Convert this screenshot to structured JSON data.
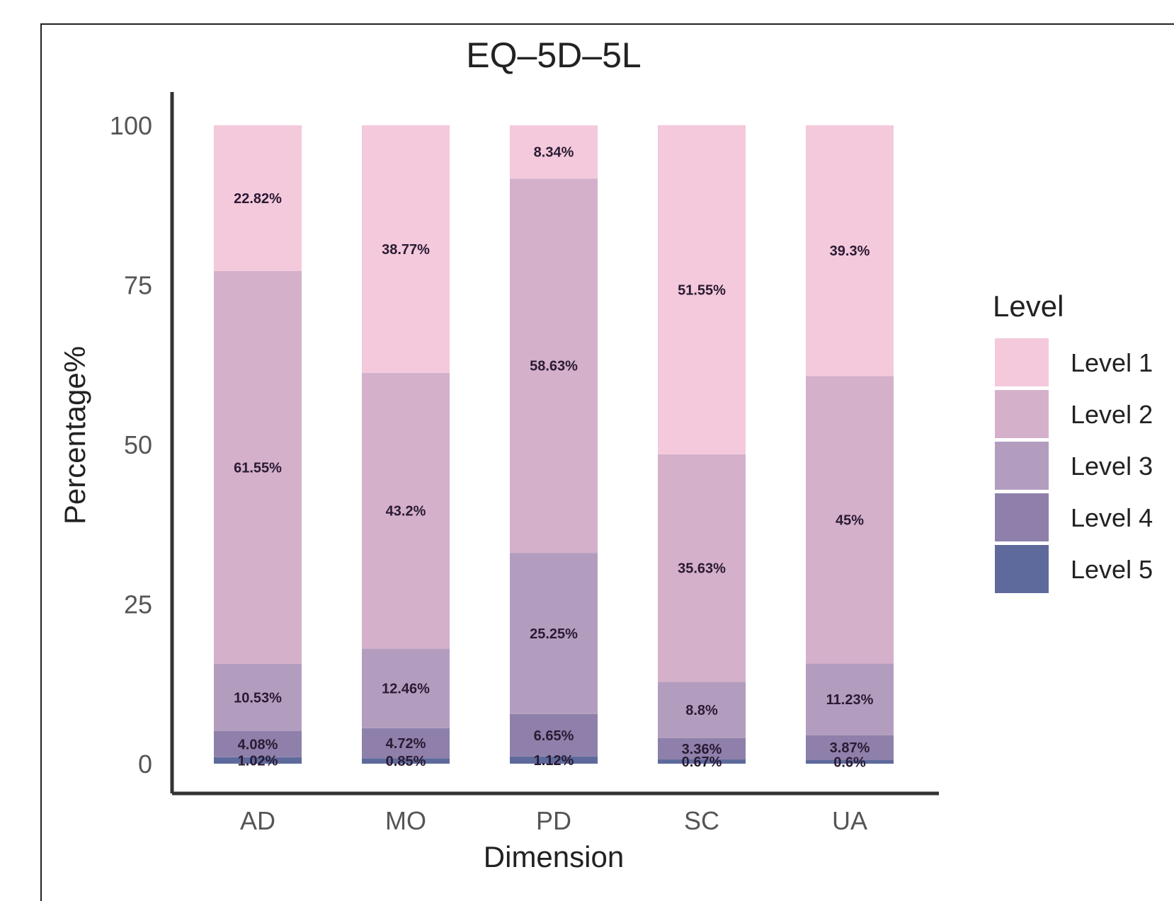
{
  "chart_data": {
    "type": "bar",
    "stacked": true,
    "title": "EQ–5D–5L",
    "xlabel": "Dimension",
    "ylabel": "Percentage%",
    "ylim": [
      0,
      100
    ],
    "yticks": [
      "0",
      "25",
      "50",
      "75",
      "100"
    ],
    "categories": [
      "AD",
      "MO",
      "PD",
      "SC",
      "UA"
    ],
    "legend": {
      "title": "Level",
      "position": "right"
    },
    "series": [
      {
        "name": "Level 1",
        "color": "#f4c9dc",
        "values": [
          22.82,
          38.77,
          8.34,
          51.55,
          39.3
        ],
        "labels": [
          "22.82%",
          "38.77%",
          "8.34%",
          "51.55%",
          "39.3%"
        ]
      },
      {
        "name": "Level 2",
        "color": "#d5b0cb",
        "values": [
          61.55,
          43.2,
          58.63,
          35.63,
          45
        ],
        "labels": [
          "61.55%",
          "43.2%",
          "58.63%",
          "35.63%",
          "45%"
        ]
      },
      {
        "name": "Level 3",
        "color": "#b39dbf",
        "values": [
          10.53,
          12.46,
          25.25,
          8.8,
          11.23
        ],
        "labels": [
          "10.53%",
          "12.46%",
          "25.25%",
          "8.8%",
          "11.23%"
        ]
      },
      {
        "name": "Level 4",
        "color": "#8e80aa",
        "values": [
          4.08,
          4.72,
          6.65,
          3.36,
          3.87
        ],
        "labels": [
          "4.08%",
          "4.72%",
          "6.65%",
          "3.36%",
          "3.87%"
        ]
      },
      {
        "name": "Level 5",
        "color": "#5e6a9c",
        "values": [
          1.02,
          0.85,
          1.12,
          0.67,
          0.6
        ],
        "labels": [
          "1.02%",
          "0.85%",
          "1.12%",
          "0.67%",
          "0.6%"
        ]
      }
    ]
  }
}
